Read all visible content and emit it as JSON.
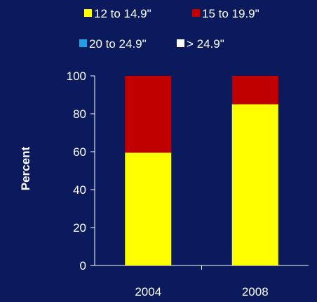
{
  "chart_data": {
    "type": "bar",
    "stacked": true,
    "categories": [
      "2004",
      "2008"
    ],
    "series": [
      {
        "name": "12 to 14.9\"",
        "color": "#ffff00",
        "values": [
          59.5,
          85
        ]
      },
      {
        "name": "15 to 19.9\"",
        "color": "#c00000",
        "values": [
          40.5,
          15
        ]
      },
      {
        "name": "20 to 24.9\"",
        "color": "#1aa3e8",
        "values": [
          0,
          0
        ]
      },
      {
        "name": "> 24.9\"",
        "color": "#ffffff",
        "values": [
          0,
          0
        ]
      }
    ],
    "ylabel": "Percent",
    "xlabel": "",
    "ylim": [
      0,
      100
    ],
    "yticks": [
      "0",
      "20",
      "40",
      "60",
      "80",
      "100"
    ],
    "grid": false,
    "legend_position": "top"
  },
  "colors": {
    "background": "#0a1a5c",
    "axis": "#ffffff",
    "text": "#ffffff"
  }
}
